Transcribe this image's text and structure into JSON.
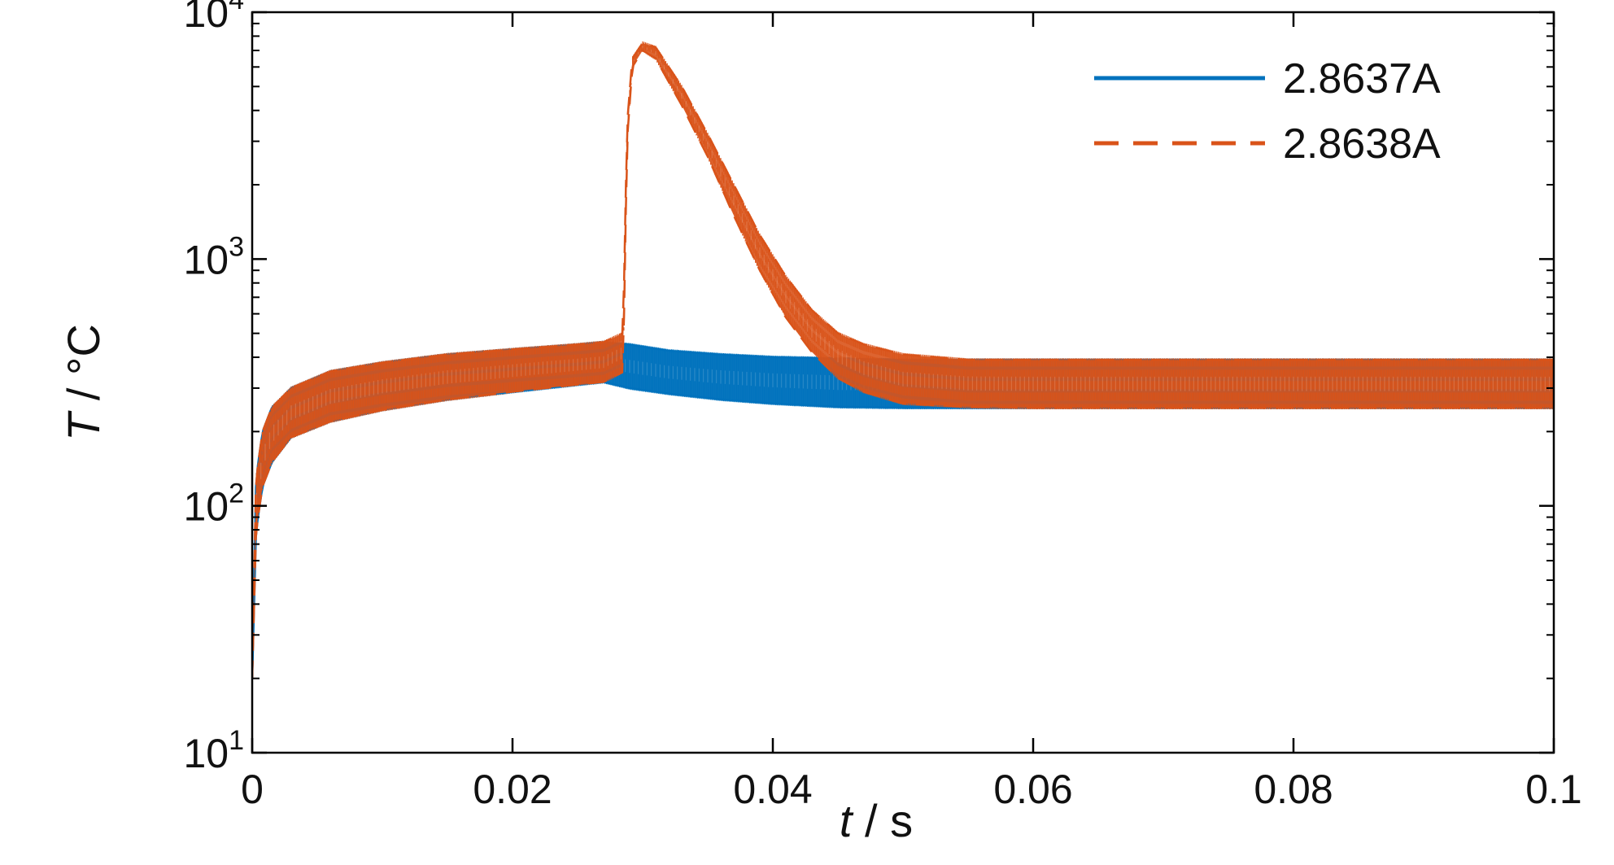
{
  "chart_data": {
    "type": "line",
    "title": "",
    "xlabel": {
      "var": "t",
      "unit": " / s"
    },
    "ylabel": {
      "var": "T",
      "unit": " / °C"
    },
    "x_scale": "linear",
    "y_scale": "log",
    "xlim": [
      0,
      0.1
    ],
    "ylim": [
      10,
      10000
    ],
    "x_ticks": [
      0,
      0.02,
      0.04,
      0.06,
      0.08,
      0.1
    ],
    "x_tick_labels": [
      "0",
      "0.02",
      "0.04",
      "0.06",
      "0.08",
      "0.1"
    ],
    "y_ticks": [
      10,
      100,
      1000,
      10000
    ],
    "y_tick_labels": [
      {
        "base": "10",
        "exp": "1"
      },
      {
        "base": "10",
        "exp": "2"
      },
      {
        "base": "10",
        "exp": "3"
      },
      {
        "base": "10",
        "exp": "4"
      }
    ],
    "grid": false,
    "legend_position": "top-right",
    "series": [
      {
        "name": "2.8637A",
        "color": "#0072bd",
        "style": "solid",
        "envelope": {
          "x": [
            0,
            0.0003,
            0.0008,
            0.0015,
            0.003,
            0.006,
            0.01,
            0.015,
            0.02,
            0.025,
            0.027,
            0.029,
            0.032,
            0.036,
            0.04,
            0.045,
            0.05,
            0.06,
            0.07,
            0.08,
            0.09,
            0.1
          ],
          "upper": [
            20,
            130,
            200,
            250,
            300,
            350,
            380,
            410,
            430,
            450,
            460,
            450,
            425,
            410,
            400,
            395,
            390,
            390,
            390,
            390,
            390,
            390
          ],
          "lower": [
            20,
            80,
            120,
            150,
            190,
            220,
            245,
            270,
            290,
            310,
            318,
            300,
            285,
            270,
            260,
            252,
            250,
            250,
            250,
            250,
            250,
            250
          ]
        }
      },
      {
        "name": "2.8638A",
        "color": "#d95319",
        "style": "dashed",
        "envelope": {
          "x": [
            0,
            0.0003,
            0.0008,
            0.0015,
            0.003,
            0.006,
            0.01,
            0.015,
            0.02,
            0.025,
            0.027,
            0.0285,
            0.0288,
            0.0292,
            0.03,
            0.031,
            0.033,
            0.035,
            0.037,
            0.039,
            0.041,
            0.043,
            0.045,
            0.047,
            0.05,
            0.055,
            0.06,
            0.07,
            0.08,
            0.09,
            0.1
          ],
          "upper": [
            20,
            130,
            200,
            250,
            300,
            350,
            380,
            410,
            430,
            450,
            460,
            500,
            3500,
            6500,
            7500,
            7200,
            5000,
            3200,
            2000,
            1250,
            850,
            620,
            500,
            450,
            410,
            390,
            390,
            390,
            390,
            390,
            390
          ],
          "lower": [
            20,
            80,
            120,
            150,
            190,
            220,
            245,
            270,
            290,
            310,
            318,
            350,
            3000,
            6000,
            7000,
            6500,
            4200,
            2600,
            1500,
            900,
            580,
            420,
            330,
            290,
            260,
            252,
            250,
            250,
            250,
            250,
            250
          ]
        }
      }
    ],
    "annotations": [
      {
        "series": "2.8638A",
        "type": "peak",
        "x": 0.0298,
        "y": 7500
      }
    ]
  }
}
